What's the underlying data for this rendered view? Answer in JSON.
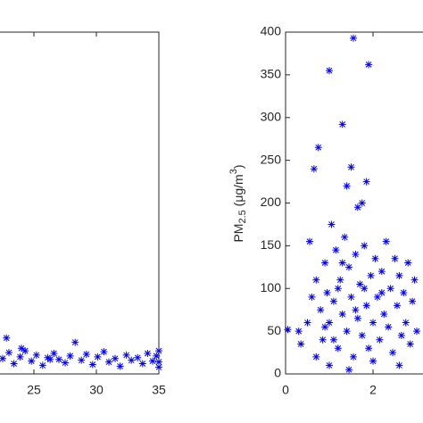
{
  "chart_data": [
    {
      "type": "scatter",
      "color": "#0000ff",
      "x": [
        22.5,
        23,
        23.4,
        23.9,
        24.3,
        24.8,
        25.2,
        25.7,
        26.1,
        26.6,
        27,
        27.5,
        27.9,
        28.3,
        28.8,
        29.2,
        29.7,
        30.1,
        30.6,
        31,
        31.5,
        31.9,
        32.4,
        32.8,
        33.3,
        33.7,
        34.1,
        34.5,
        34.8,
        35,
        35,
        35,
        22.8,
        24,
        26.3
      ],
      "y": [
        18,
        25,
        12,
        20,
        27,
        15,
        22,
        10,
        19,
        24,
        17,
        13,
        21,
        37,
        16,
        23,
        11,
        20,
        26,
        14,
        18,
        9,
        22,
        16,
        19,
        12,
        24,
        15,
        21,
        8,
        14,
        27,
        42,
        30,
        17
      ],
      "xlim": [
        20,
        35
      ],
      "ylim": [
        0,
        400
      ],
      "xticks": [
        25,
        30,
        35
      ]
    },
    {
      "type": "scatter",
      "color": "#0000ff",
      "ylabel": {
        "main": "PM",
        "sub": "2.5",
        "unit": " (μg/m",
        "sup": "3",
        "end": ")"
      },
      "x": [
        0.05,
        0.3,
        0.35,
        0.5,
        0.55,
        0.6,
        0.65,
        0.7,
        0.75,
        0.8,
        0.85,
        0.9,
        0.95,
        1.0,
        1.0,
        1.05,
        1.1,
        1.15,
        1.2,
        1.25,
        1.3,
        1.3,
        1.35,
        1.4,
        1.4,
        1.45,
        1.5,
        1.5,
        1.55,
        1.55,
        1.6,
        1.65,
        1.65,
        1.7,
        1.75,
        1.75,
        1.8,
        1.85,
        1.85,
        1.9,
        1.9,
        1.95,
        2.0,
        2.05,
        2.1,
        2.15,
        2.2,
        2.25,
        2.3,
        2.35,
        2.4,
        2.45,
        2.5,
        2.55,
        2.6,
        2.65,
        2.7,
        2.75,
        2.8,
        2.85,
        2.9,
        2.95,
        3.0,
        0.7,
        1.0,
        1.2,
        1.45,
        1.6,
        2.0,
        2.2,
        2.6,
        1.1,
        0.9,
        1.3,
        1.8
      ],
      "y": [
        52,
        50,
        35,
        60,
        155,
        90,
        240,
        110,
        265,
        75,
        40,
        130,
        95,
        355,
        60,
        175,
        85,
        145,
        30,
        110,
        292,
        70,
        160,
        220,
        50,
        125,
        242,
        90,
        393,
        20,
        140,
        195,
        65,
        105,
        200,
        45,
        150,
        225,
        80,
        362,
        30,
        115,
        60,
        135,
        90,
        40,
        120,
        70,
        155,
        55,
        100,
        25,
        135,
        80,
        115,
        45,
        95,
        60,
        130,
        35,
        85,
        110,
        50,
        20,
        10,
        100,
        5,
        75,
        15,
        95,
        10,
        40,
        55,
        130,
        100
      ],
      "xlim": [
        0,
        4
      ],
      "ylim": [
        0,
        400
      ],
      "xticks": [
        0,
        2
      ],
      "yticks": [
        0,
        50,
        100,
        150,
        200,
        250,
        300,
        350,
        400
      ]
    }
  ]
}
